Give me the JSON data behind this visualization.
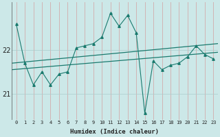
{
  "title": "",
  "xlabel": "Humidex (Indice chaleur)",
  "bg_color": "#cce8e8",
  "grid_color_v": "#d4a0a0",
  "grid_color_h": "#aacccc",
  "line_color": "#1a7a6e",
  "x_values": [
    0,
    1,
    2,
    3,
    4,
    5,
    6,
    7,
    8,
    9,
    10,
    11,
    12,
    13,
    14,
    15,
    16,
    17,
    18,
    19,
    20,
    21,
    22,
    23
  ],
  "y_main": [
    22.6,
    21.7,
    21.2,
    21.5,
    21.2,
    21.45,
    21.5,
    22.05,
    22.1,
    22.15,
    22.3,
    22.85,
    22.55,
    22.8,
    22.4,
    20.55,
    21.75,
    21.55,
    21.65,
    21.7,
    21.85,
    22.1,
    21.9,
    21.8
  ],
  "trend1_start": 21.55,
  "trend1_end": 21.95,
  "trend2_start": 21.7,
  "trend2_end": 22.15,
  "ylim": [
    20.4,
    23.1
  ],
  "yticks": [
    21.0,
    22.0
  ],
  "ytick_labels": [
    "21",
    "22"
  ],
  "xticks": [
    0,
    1,
    2,
    3,
    4,
    5,
    6,
    7,
    8,
    9,
    10,
    11,
    12,
    13,
    14,
    15,
    16,
    17,
    18,
    19,
    20,
    21,
    22,
    23
  ],
  "figsize": [
    3.2,
    2.0
  ],
  "dpi": 100
}
